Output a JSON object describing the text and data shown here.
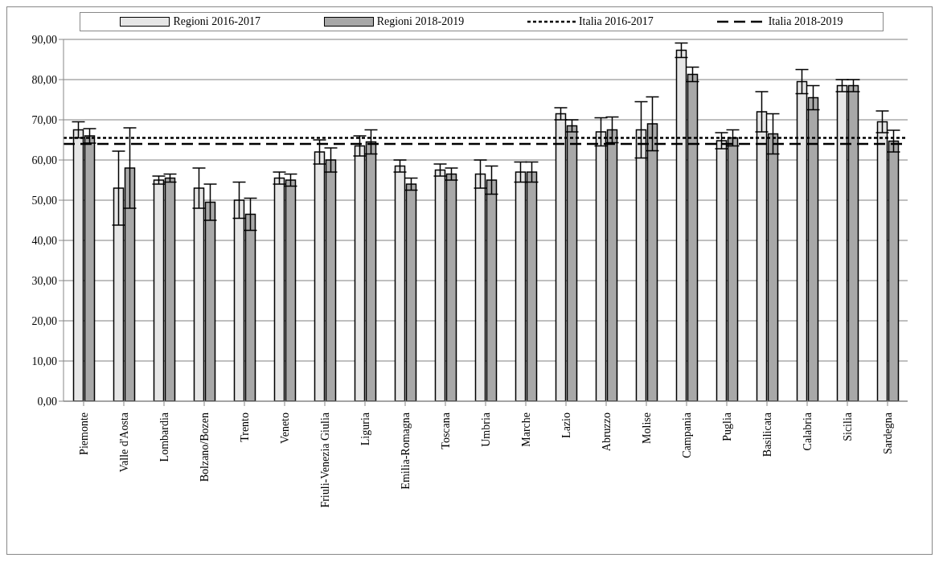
{
  "chart_data": {
    "type": "bar",
    "categories": [
      "Piemonte",
      "Valle d'Aosta",
      "Lombardia",
      "Bolzano/Bozen",
      "Trento",
      "Veneto",
      "Friuli-Venezia Giulia",
      "Liguria",
      "Emilia-Romagna",
      "Toscana",
      "Umbria",
      "Marche",
      "Lazio",
      "Abruzzo",
      "Molise",
      "Campania",
      "Puglia",
      "Basilicata",
      "Calabria",
      "Sicilia",
      "Sardegna"
    ],
    "series": [
      {
        "name": "Regioni 2016-2017",
        "color": "#e6e6e6",
        "values": [
          67.5,
          53,
          55,
          53,
          50,
          55.5,
          62,
          63.5,
          58.5,
          57.5,
          56.5,
          57,
          71.5,
          67,
          67.5,
          87.3,
          64.8,
          72,
          79.5,
          78.5,
          69.5
        ],
        "errors": [
          2,
          9.2,
          1,
          5,
          4.5,
          1.5,
          3,
          2.5,
          1.5,
          1.5,
          3.5,
          2.5,
          1.5,
          3.5,
          7,
          1.8,
          2,
          5,
          3,
          1.5,
          2.7
        ]
      },
      {
        "name": "Regioni 2018-2019",
        "color": "#a8a8a8",
        "values": [
          66,
          58,
          55.5,
          49.5,
          46.5,
          55,
          60,
          64.5,
          54,
          56.5,
          55,
          57,
          68.5,
          67.5,
          69,
          81.3,
          65.5,
          66.5,
          75.5,
          78.5,
          64.7
        ],
        "errors": [
          1.8,
          10,
          1,
          4.5,
          4,
          1.5,
          3,
          3,
          1.5,
          1.5,
          3.5,
          2.5,
          1.5,
          3.2,
          6.7,
          1.8,
          2,
          5,
          3,
          1.5,
          2.7
        ]
      }
    ],
    "ref_lines": [
      {
        "axis": "y",
        "value": 65.5,
        "label": "Italia 2016-2017",
        "color": "#000000",
        "line_style": "dotted"
      },
      {
        "axis": "y",
        "value": 64,
        "label": "Italia 2018-2019",
        "color": "#000000",
        "line_style": "dashed"
      }
    ],
    "ylim": [
      0,
      90
    ],
    "yticks": [
      {
        "value": 0,
        "label": "0,00"
      },
      {
        "value": 10,
        "label": "10,00"
      },
      {
        "value": 20,
        "label": "20,00"
      },
      {
        "value": 30,
        "label": "30,00"
      },
      {
        "value": 40,
        "label": "40,00"
      },
      {
        "value": 50,
        "label": "50,00"
      },
      {
        "value": 60,
        "label": "60,00"
      },
      {
        "value": 70,
        "label": "70,00"
      },
      {
        "value": 80,
        "label": "80,00"
      },
      {
        "value": 90,
        "label": "90,00"
      }
    ],
    "grid": "y",
    "legend": "top"
  }
}
